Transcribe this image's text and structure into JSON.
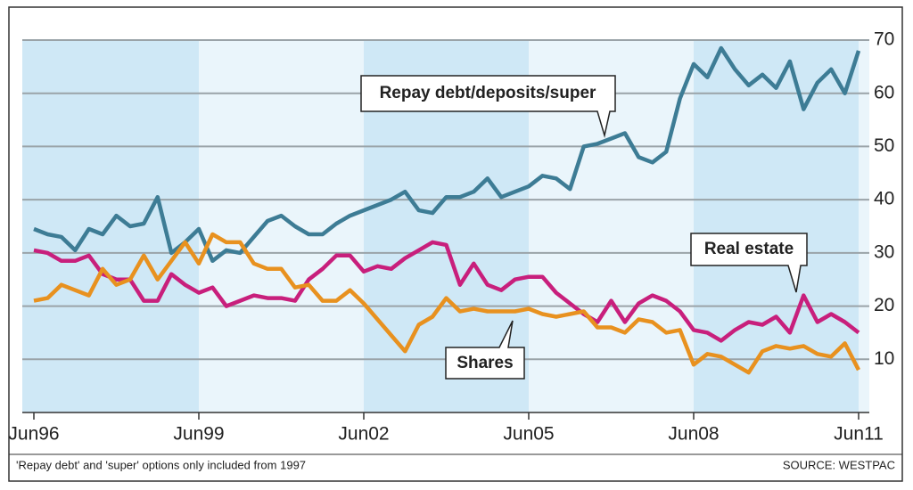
{
  "chart_data": {
    "type": "line",
    "categories": [
      "Jun96",
      null,
      null,
      null,
      null,
      null,
      null,
      null,
      null,
      null,
      null,
      null,
      "Jun99",
      null,
      null,
      null,
      null,
      null,
      null,
      null,
      null,
      null,
      null,
      null,
      "Jun02",
      null,
      null,
      null,
      null,
      null,
      null,
      null,
      null,
      null,
      null,
      null,
      "Jun05",
      null,
      null,
      null,
      null,
      null,
      null,
      null,
      null,
      null,
      null,
      null,
      "Jun08",
      null,
      null,
      null,
      null,
      null,
      null,
      null,
      null,
      null,
      null,
      null,
      "Jun11"
    ],
    "series": [
      {
        "name": "Repay debt/deposits/super",
        "color": "#3d7c95",
        "values": [
          34.5,
          33.5,
          33,
          30.5,
          34.5,
          33.5,
          37,
          35,
          35.5,
          40.5,
          30,
          32,
          34.5,
          28.5,
          30.5,
          30,
          33,
          36,
          37,
          35,
          33.5,
          33.5,
          35.5,
          37,
          38,
          39,
          40,
          41.5,
          38,
          37.5,
          40.5,
          40.5,
          41.5,
          44,
          40.5,
          41.5,
          42.5,
          44.5,
          44,
          42,
          50,
          50.5,
          51.5,
          52.5,
          48,
          47,
          49,
          59,
          65.5,
          63,
          68.5,
          64.5,
          61.5,
          63.5,
          61,
          66,
          57,
          62,
          64.5,
          60,
          68
        ]
      },
      {
        "name": "Real estate",
        "color": "#c81f7c",
        "values": [
          30.5,
          30,
          28.5,
          28.5,
          29.5,
          26,
          25,
          25,
          21,
          21,
          26,
          24,
          22.5,
          23.5,
          20,
          21,
          22,
          21.5,
          21.5,
          21,
          25,
          27,
          29.5,
          29.5,
          26.5,
          27.5,
          27,
          29,
          30.5,
          32,
          31.5,
          24,
          28,
          24,
          23,
          25,
          25.5,
          25.5,
          22.5,
          20.5,
          18.5,
          17,
          21,
          17,
          20.5,
          22,
          21,
          19,
          15.5,
          15,
          13.5,
          15.5,
          17,
          16.5,
          18,
          15,
          22,
          17,
          18.5,
          17,
          15
        ]
      },
      {
        "name": "Shares",
        "color": "#e8911f",
        "values": [
          21,
          21.5,
          24,
          23,
          22,
          27,
          24,
          25,
          29.5,
          25,
          28.5,
          32,
          28,
          33.5,
          32,
          32,
          28,
          27,
          27,
          23.5,
          24,
          21,
          21,
          23,
          20.5,
          17.5,
          14.5,
          11.5,
          16.5,
          18,
          21.5,
          19,
          19.5,
          19,
          19,
          19,
          19.5,
          18.5,
          18,
          18.5,
          19,
          16,
          16,
          15,
          17.5,
          17,
          15,
          15.5,
          9,
          11,
          10.5,
          9,
          7.5,
          11.5,
          12.5,
          12,
          12.5,
          11,
          10.5,
          13,
          8
        ]
      }
    ],
    "ylim": [
      0,
      70
    ],
    "yticks": [
      10,
      20,
      30,
      40,
      50,
      60,
      70
    ],
    "grid": true,
    "footnote": "'Repay debt' and 'super' options only included from 1997",
    "source": "SOURCE: WESTPAC"
  }
}
